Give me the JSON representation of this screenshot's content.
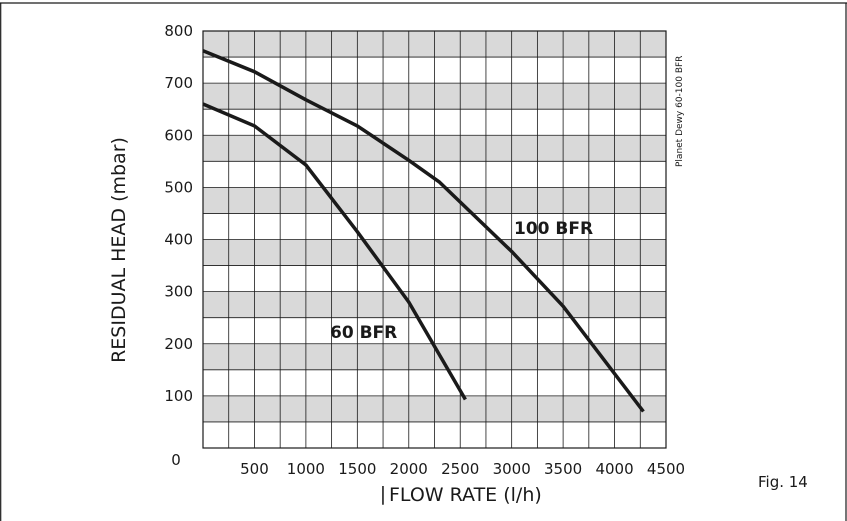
{
  "chart_data": {
    "type": "line",
    "title": "",
    "xlabel": "FLOW RATE (l/h)",
    "ylabel": "RESIDUAL HEAD (mbar)",
    "xlim": [
      0,
      4500
    ],
    "ylim": [
      0,
      800
    ],
    "x_ticks": [
      "0",
      "500",
      "1000",
      "1500",
      "2000",
      "2500",
      "3000",
      "3500",
      "4000",
      "4500"
    ],
    "y_ticks": [
      "0",
      "100",
      "200",
      "300",
      "400",
      "500",
      "600",
      "700",
      "800"
    ],
    "grid": true,
    "series": [
      {
        "name": "60 BFR",
        "color": "#1a1a1a",
        "points": [
          {
            "x": 0,
            "y": 660
          },
          {
            "x": 500,
            "y": 618
          },
          {
            "x": 1000,
            "y": 543
          },
          {
            "x": 1500,
            "y": 415
          },
          {
            "x": 2000,
            "y": 280
          },
          {
            "x": 2550,
            "y": 93
          }
        ]
      },
      {
        "name": "100 BFR",
        "color": "#1a1a1a",
        "points": [
          {
            "x": 0,
            "y": 762
          },
          {
            "x": 500,
            "y": 722
          },
          {
            "x": 1000,
            "y": 668
          },
          {
            "x": 1500,
            "y": 618
          },
          {
            "x": 2000,
            "y": 552
          },
          {
            "x": 2300,
            "y": 510
          },
          {
            "x": 3000,
            "y": 377
          },
          {
            "x": 3500,
            "y": 272
          },
          {
            "x": 4280,
            "y": 70
          }
        ]
      }
    ],
    "side_note": "Planet Dewy 60-100 BFR",
    "figure_label": "Fig. 14"
  }
}
